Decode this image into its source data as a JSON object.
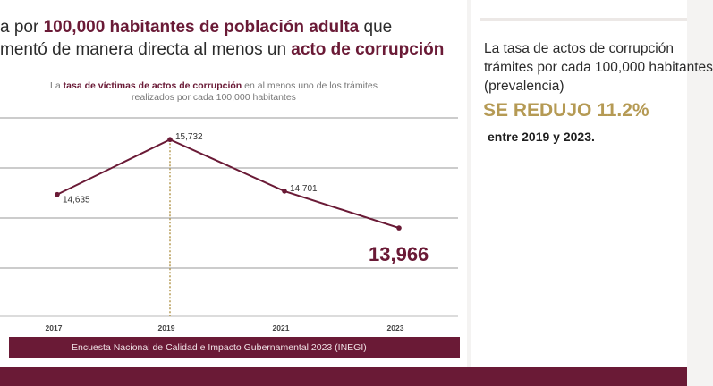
{
  "headline": {
    "line1_prefix": "a por ",
    "line1_bold": "100,000 habitantes de población adulta",
    "line1_suffix": " que",
    "line2_prefix": "mentó de manera directa al menos un ",
    "line2_bold": "acto de corrupción"
  },
  "chart_data": {
    "type": "line",
    "title": "",
    "subtitle_prefix": "La ",
    "subtitle_bold": "tasa de víctimas de actos de corrupción",
    "subtitle_suffix": " en al menos uno de los trámites",
    "subtitle_line2": "realizados por cada 100,000 habitantes",
    "categories": [
      "2017",
      "2019",
      "2021",
      "2023"
    ],
    "series": [
      {
        "values": [
          14635,
          15732,
          14701,
          13966
        ]
      }
    ],
    "data_labels": [
      "14,635",
      "15,732",
      "14,701",
      "13,966"
    ],
    "highlight_index": 3,
    "marker_index": 1,
    "ylim": [
      12200,
      16200
    ],
    "grid": true,
    "line_color": "#6a1a36",
    "marker_color": "#b59a54"
  },
  "source": "Encuesta Nacional de Calidad e Impacto Gubernamental 2023 (INEGI)",
  "right": {
    "line1": "La tasa de actos de corrupción",
    "line2": "trámites por cada 100,000 habitantes",
    "line3": "(prevalencia)",
    "big": "SE REDUJO 11.2%",
    "date": "entre 2019 y 2023."
  },
  "colors": {
    "accent": "#6a1a36",
    "gold": "#b59a54"
  }
}
